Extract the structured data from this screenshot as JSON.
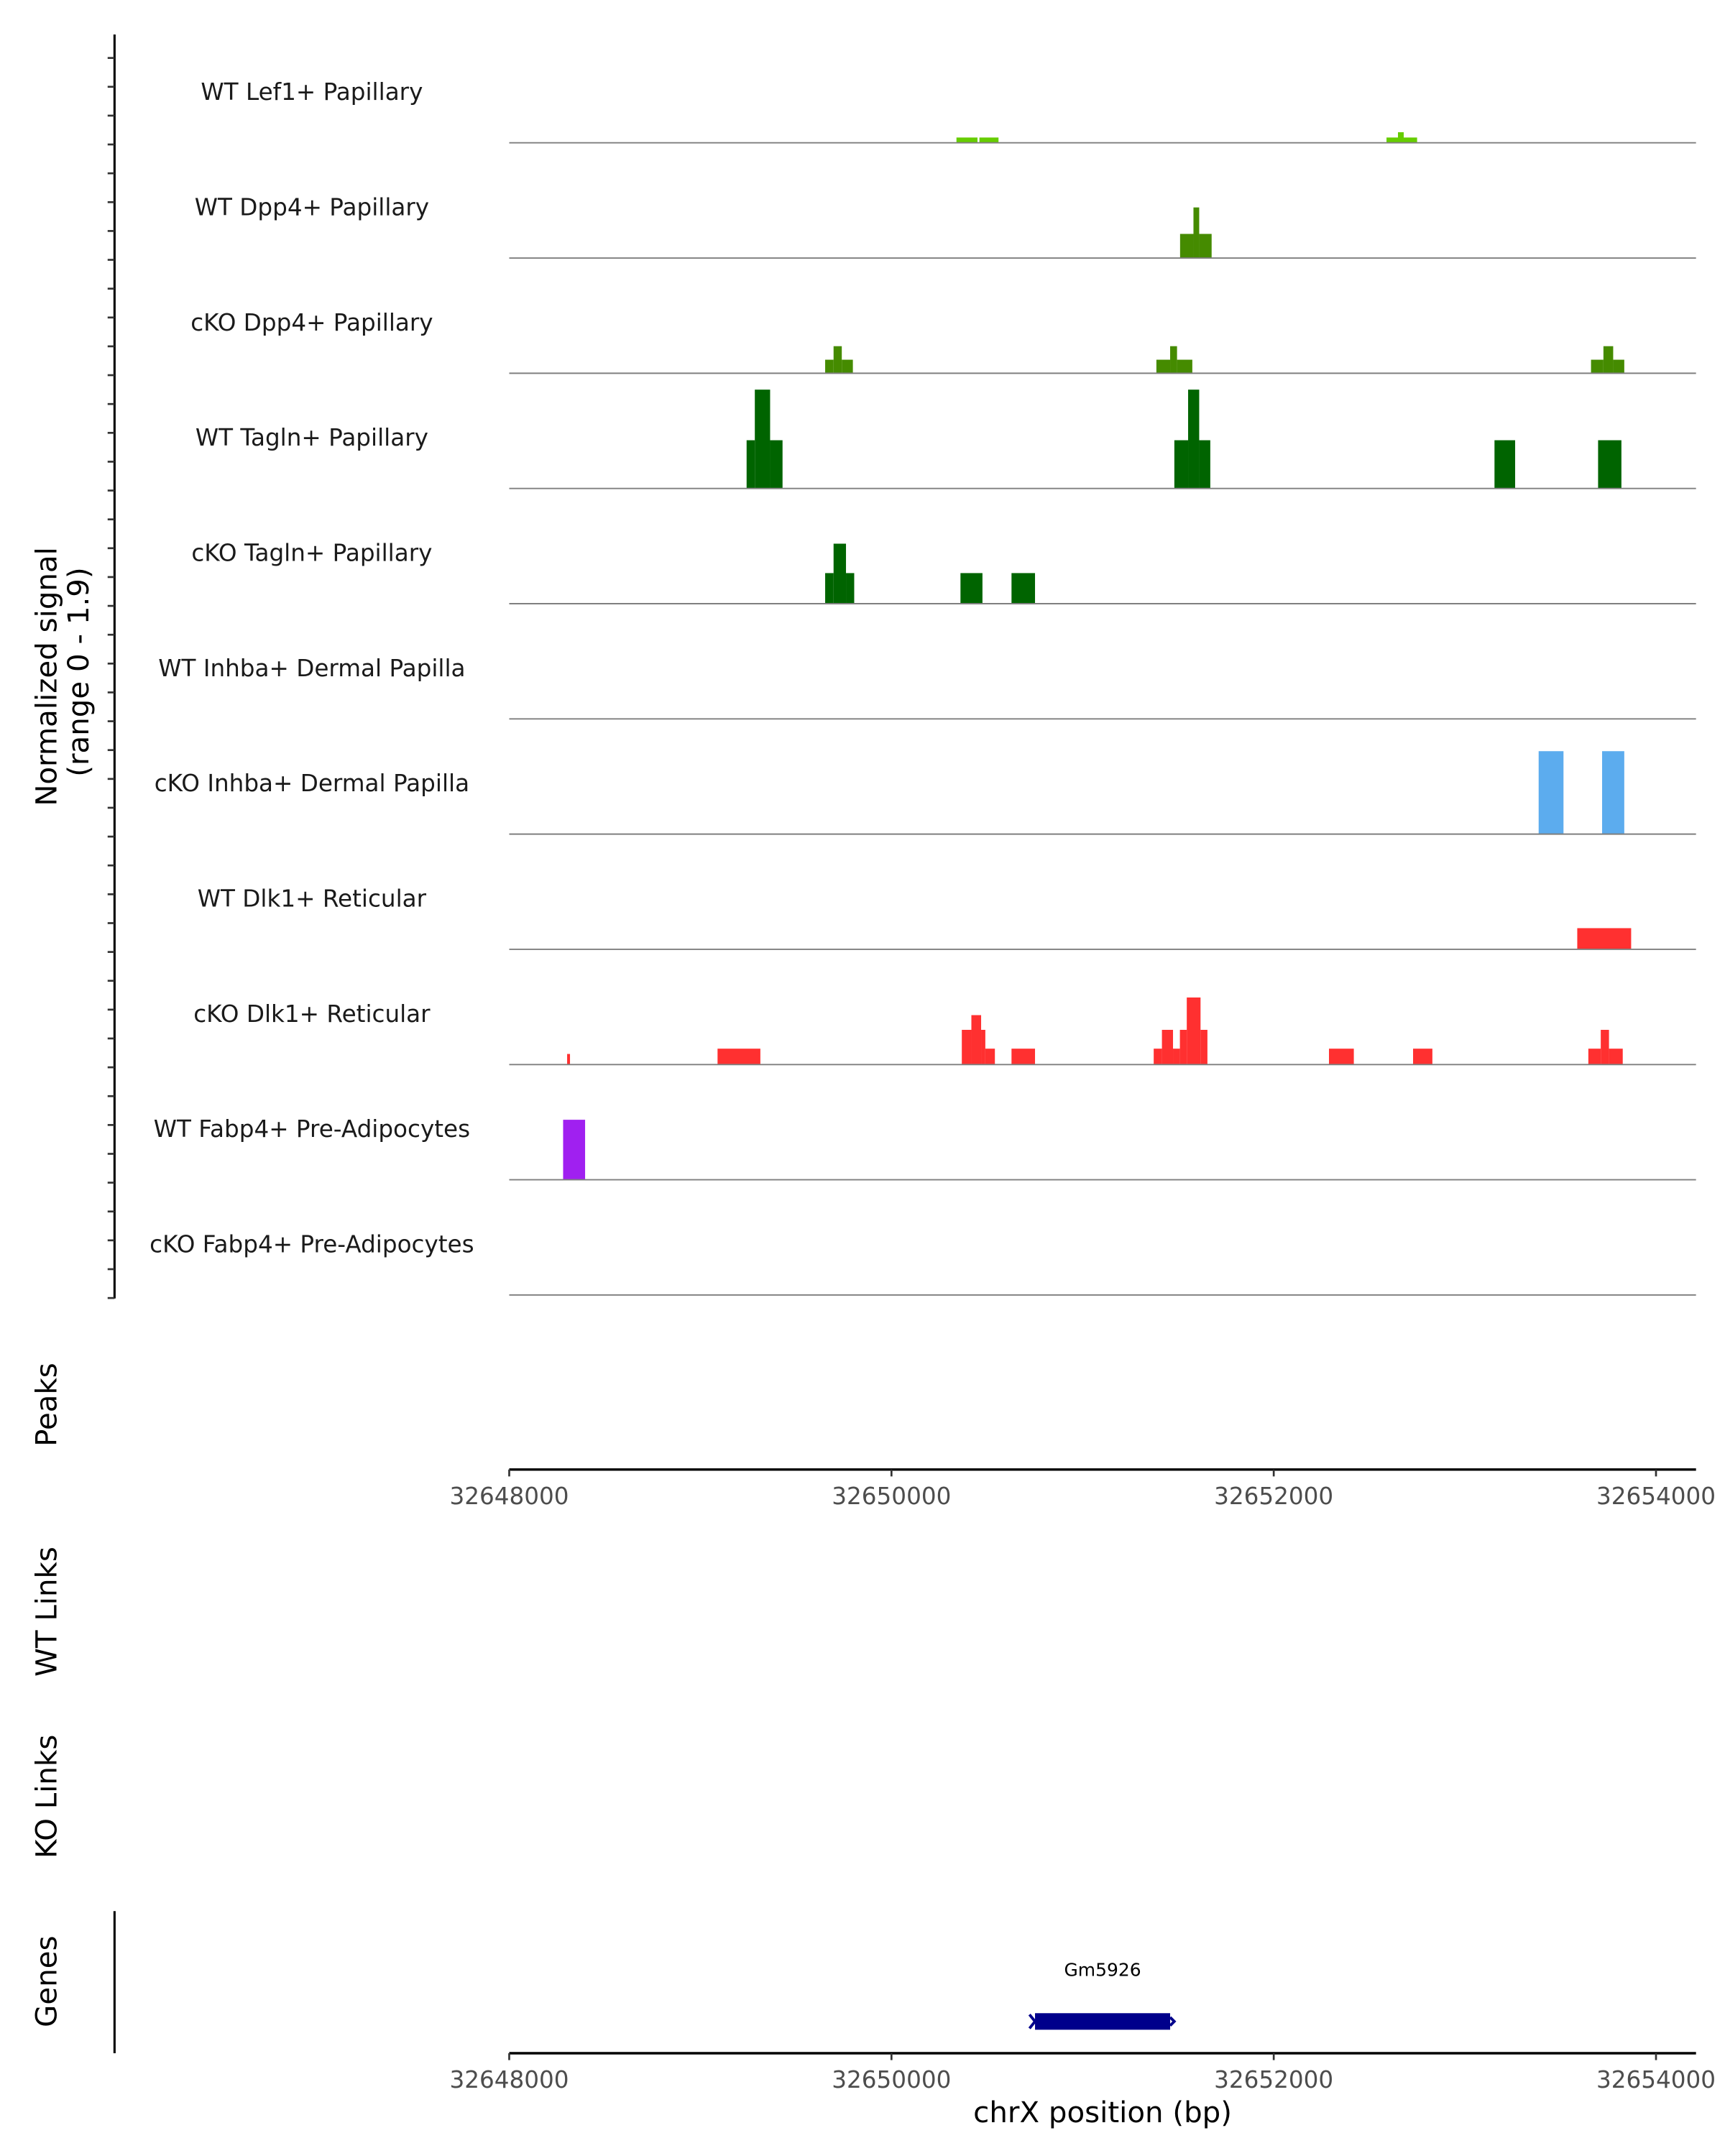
{
  "chart_data": {
    "type": "area",
    "title": "",
    "xlabel": "chrX position (bp)",
    "ylabel": "Normalized signal\n(range 0 - 1.9)",
    "ylabel_lines": [
      "Normalized signal",
      "(range 0 - 1.9)"
    ],
    "ylim": [
      0,
      1.9
    ],
    "xlim": [
      32648000,
      32654200
    ],
    "xticks": [
      32648000,
      32650000,
      32652000,
      32654000
    ],
    "xtick_labels": [
      "32648000",
      "32650000",
      "32652000",
      "32654000"
    ],
    "tracks": [
      {
        "name": "WT Lef1+ Papillary",
        "color": "#66CD00",
        "segments": [
          [
            32650340,
            32650450,
            0.09
          ],
          [
            32650460,
            32650560,
            0.09
          ],
          [
            32652590,
            32652650,
            0.09
          ],
          [
            32652650,
            32652680,
            0.18
          ],
          [
            32652680,
            32652750,
            0.09
          ]
        ]
      },
      {
        "name": "WT Dpp4+ Papillary",
        "color": "#458B00",
        "segments": [
          [
            32651510,
            32651580,
            0.41
          ],
          [
            32651580,
            32651610,
            0.86
          ],
          [
            32651610,
            32651675,
            0.41
          ]
        ]
      },
      {
        "name": "cKO Dpp4+ Papillary",
        "color": "#458B00",
        "segments": [
          [
            32649653,
            32649697,
            0.23
          ],
          [
            32649697,
            32649740,
            0.46
          ],
          [
            32649740,
            32649798,
            0.23
          ],
          [
            32651386,
            32651458,
            0.23
          ],
          [
            32651458,
            32651494,
            0.46
          ],
          [
            32651494,
            32651574,
            0.23
          ],
          [
            32653660,
            32653725,
            0.23
          ],
          [
            32653725,
            32653776,
            0.46
          ],
          [
            32653776,
            32653834,
            0.23
          ]
        ]
      },
      {
        "name": "WT Tagln+ Papillary",
        "color": "#006400",
        "segments": [
          [
            32649242,
            32649285,
            0.82
          ],
          [
            32649285,
            32649365,
            1.68
          ],
          [
            32649365,
            32649430,
            0.82
          ],
          [
            32651480,
            32651552,
            0.82
          ],
          [
            32651552,
            32651610,
            1.68
          ],
          [
            32651610,
            32651668,
            0.82
          ],
          [
            32653155,
            32653263,
            0.82
          ],
          [
            32653697,
            32653819,
            0.82
          ]
        ]
      },
      {
        "name": "cKO Tagln+ Papillary",
        "color": "#006400",
        "segments": [
          [
            32649653,
            32649697,
            0.52
          ],
          [
            32649697,
            32649762,
            1.02
          ],
          [
            32649762,
            32649805,
            0.52
          ],
          [
            32650361,
            32650476,
            0.52
          ],
          [
            32650628,
            32650751,
            0.52
          ]
        ]
      },
      {
        "name": "WT Inhba+ Dermal Papilla",
        "color": "#5CACEE",
        "segments": []
      },
      {
        "name": "cKO Inhba+ Dermal Papilla",
        "color": "#5CACEE",
        "segments": [
          [
            32653386,
            32653516,
            1.41
          ],
          [
            32653718,
            32653834,
            1.41
          ]
        ]
      },
      {
        "name": "WT Dlk1+ Reticular",
        "color": "#FF3030",
        "segments": [
          [
            32653588,
            32653870,
            0.36
          ]
        ]
      },
      {
        "name": "cKO Dlk1+ Reticular",
        "color": "#FF3030",
        "segments": [
          [
            32648303,
            32648318,
            0.18
          ],
          [
            32649090,
            32649314,
            0.27
          ],
          [
            32650368,
            32650418,
            0.59
          ],
          [
            32650418,
            32650469,
            0.84
          ],
          [
            32650469,
            32650491,
            0.59
          ],
          [
            32650491,
            32650541,
            0.27
          ],
          [
            32650628,
            32650751,
            0.27
          ],
          [
            32651372,
            32651415,
            0.27
          ],
          [
            32651415,
            32651473,
            0.59
          ],
          [
            32651473,
            32651509,
            0.27
          ],
          [
            32651509,
            32651545,
            0.59
          ],
          [
            32651545,
            32651617,
            1.14
          ],
          [
            32651617,
            32651653,
            0.59
          ],
          [
            32652289,
            32652419,
            0.27
          ],
          [
            32652729,
            32652830,
            0.27
          ],
          [
            32653646,
            32653711,
            0.27
          ],
          [
            32653711,
            32653754,
            0.59
          ],
          [
            32653754,
            32653826,
            0.27
          ]
        ]
      },
      {
        "name": "WT Fabp4+ Pre-Adipocytes",
        "color": "#A020F0",
        "segments": [
          [
            32648282,
            32648397,
            1.02
          ]
        ]
      },
      {
        "name": "cKO Fabp4+ Pre-Adipocytes",
        "color": "#A020F0",
        "segments": []
      }
    ],
    "panels": {
      "peaks": "Peaks",
      "wt_links": "WT Links",
      "ko_links": "KO Links",
      "genes": "Genes"
    },
    "genes": [
      {
        "name": "Gm5926",
        "start": 32650751,
        "end": 32651458,
        "strand": "+",
        "color": "#00008B"
      }
    ]
  }
}
